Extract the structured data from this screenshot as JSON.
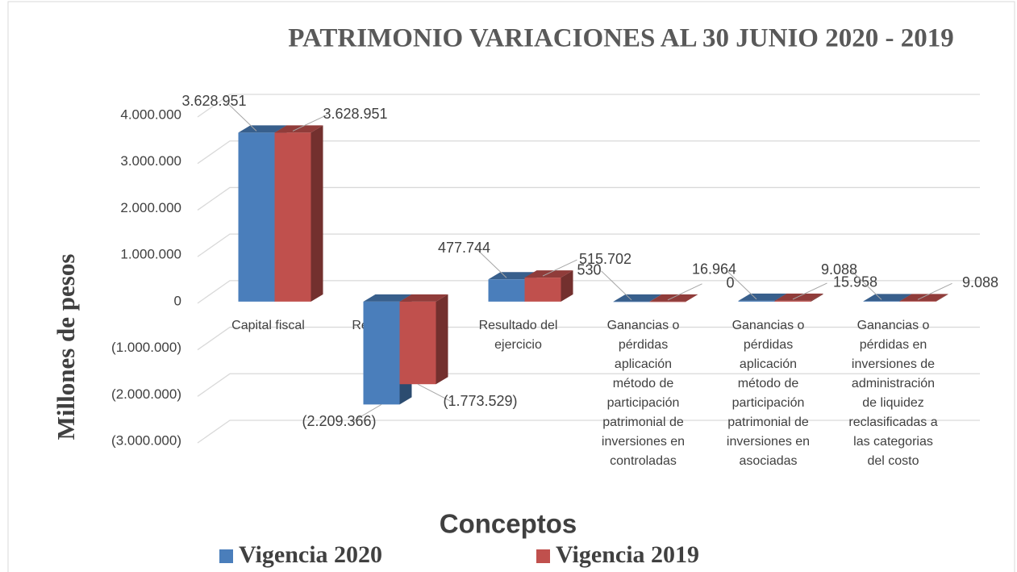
{
  "chart_data": {
    "type": "bar3d",
    "title": "PATRIMONIO VARIACIONES AL 30 JUNIO 2020 - 2019",
    "y_label": "Millones de pesos",
    "x_label": "Conceptos",
    "categories": [
      "Capital fiscal",
      "Resultados de ejercicios anteriores",
      "Resultado del ejercicio",
      "Ganancias o pérdidas aplicación método de participación patrimonial de inversiones en controladas",
      "Ganancias o pérdidas aplicación método de participación patrimonial de inversiones en asociadas",
      "Ganancias o pérdidas en inversiones de administración de liquidez reclasificadas a las categorias del costo"
    ],
    "series": [
      {
        "name": "Vigencia 2020",
        "color": "#4a7ebb",
        "values": [
          3628951,
          -2209366,
          477744,
          530,
          16964,
          9088
        ],
        "value_labels": [
          "3.628.951",
          "(2.209.366)",
          "477.744",
          "530",
          "16.964",
          "9.088"
        ]
      },
      {
        "name": "Vigencia 2019",
        "color": "#c0504d",
        "values": [
          3628951,
          -1773529,
          515702,
          0,
          15958,
          9088
        ],
        "value_labels": [
          "3.628.951",
          "(1.773.529)",
          "515.702",
          "0",
          "15.958",
          "9.088"
        ]
      }
    ],
    "ylim": [
      -3000000,
      4000000
    ],
    "yticks": [
      {
        "value": -3000000,
        "label": "(3.000.000)"
      },
      {
        "value": -2000000,
        "label": "(2.000.000)"
      },
      {
        "value": -1000000,
        "label": "(1.000.000)"
      },
      0,
      {
        "value": 1000000,
        "label": "1.000.000"
      },
      {
        "value": 2000000,
        "label": "2.000.000"
      },
      {
        "value": 3000000,
        "label": "3.000.000"
      },
      {
        "value": 4000000,
        "label": "4.000.000"
      }
    ],
    "grid": true,
    "legend": "bottom"
  }
}
